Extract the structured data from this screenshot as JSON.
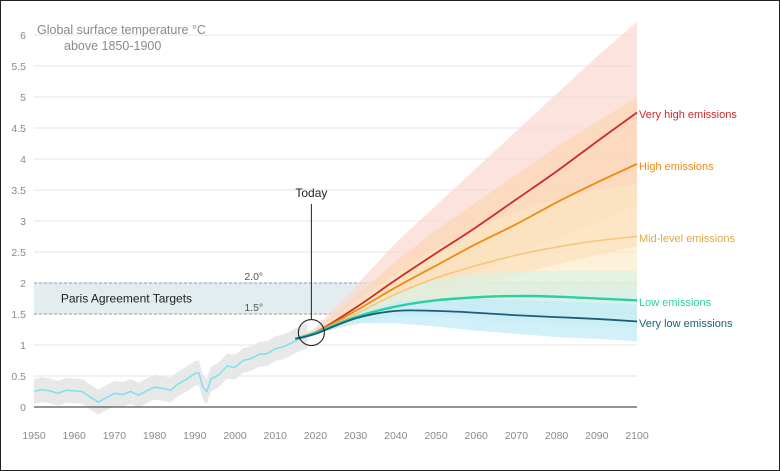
{
  "chart_data": {
    "type": "line",
    "title_lines": [
      "Global surface temperature °C",
      "above 1850-1900"
    ],
    "xlabel": "",
    "ylabel": "",
    "xlim": [
      1950,
      2100
    ],
    "ylim": [
      0,
      6
    ],
    "x_ticks": [
      "1950",
      "1960",
      "1970",
      "1980",
      "1990",
      "2000",
      "2010",
      "2020",
      "2030",
      "2040",
      "2050",
      "2060",
      "2070",
      "2080",
      "2090",
      "2100"
    ],
    "y_ticks": [
      "0",
      "0.5",
      "1",
      "1.5",
      "2",
      "2.5",
      "3",
      "3.5",
      "4",
      "4.5",
      "5",
      "5.5",
      "6"
    ],
    "grid": "horizontal",
    "colors": {
      "historical": "#7ee3f0",
      "historical_band": "#e6e6e6",
      "very_high": "#cc2b2b",
      "high": "#ef8a12",
      "mid": "#f5c77a",
      "low": "#2bd0a0",
      "very_low": "#1c5d7a",
      "very_high_band": "#fbd9d2",
      "high_band": "#fbd6b0",
      "mid_band": "#fbe8c2",
      "low_band": "#d7f3e6",
      "very_low_band": "#c6ecf7",
      "paris_band": "#e3ecee"
    },
    "historical": {
      "x": [
        1950,
        1952,
        1954,
        1956,
        1958,
        1960,
        1962,
        1964,
        1966,
        1968,
        1970,
        1972,
        1974,
        1976,
        1978,
        1980,
        1982,
        1984,
        1986,
        1988,
        1990,
        1991,
        1992,
        1993,
        1994,
        1996,
        1998,
        2000,
        2002,
        2004,
        2006,
        2008,
        2010,
        2012,
        2014,
        2016,
        2018
      ],
      "y": [
        0.25,
        0.28,
        0.26,
        0.22,
        0.27,
        0.26,
        0.25,
        0.16,
        0.08,
        0.15,
        0.22,
        0.2,
        0.25,
        0.19,
        0.26,
        0.32,
        0.3,
        0.27,
        0.38,
        0.45,
        0.54,
        0.55,
        0.32,
        0.25,
        0.45,
        0.52,
        0.66,
        0.64,
        0.75,
        0.78,
        0.85,
        0.86,
        0.94,
        0.97,
        1.03,
        1.1,
        1.14
      ],
      "band_pad": 0.2
    },
    "series": [
      {
        "name": "Very high emissions",
        "x": [
          2015,
          2020,
          2030,
          2040,
          2050,
          2060,
          2070,
          2080,
          2090,
          2100
        ],
        "y": [
          1.1,
          1.2,
          1.6,
          2.05,
          2.48,
          2.9,
          3.35,
          3.8,
          4.28,
          4.75
        ],
        "lower": [
          1.1,
          1.2,
          1.38,
          1.62,
          1.88,
          2.18,
          2.45,
          2.7,
          2.98,
          3.25
        ],
        "upper": [
          1.1,
          1.28,
          1.95,
          2.65,
          3.25,
          3.85,
          4.45,
          5.05,
          5.65,
          6.22
        ]
      },
      {
        "name": "High emissions",
        "x": [
          2015,
          2020,
          2030,
          2040,
          2050,
          2060,
          2070,
          2080,
          2090,
          2100
        ],
        "y": [
          1.1,
          1.2,
          1.55,
          1.93,
          2.28,
          2.63,
          2.95,
          3.3,
          3.62,
          3.92
        ],
        "lower": [
          1.1,
          1.2,
          1.35,
          1.55,
          1.75,
          1.95,
          2.12,
          2.3,
          2.45,
          2.6
        ],
        "upper": [
          1.1,
          1.25,
          1.78,
          2.35,
          2.85,
          3.3,
          3.75,
          4.2,
          4.6,
          5.0
        ]
      },
      {
        "name": "Mid-level emissions",
        "x": [
          2015,
          2020,
          2030,
          2040,
          2050,
          2060,
          2070,
          2080,
          2090,
          2100
        ],
        "y": [
          1.1,
          1.2,
          1.5,
          1.82,
          2.08,
          2.28,
          2.45,
          2.58,
          2.68,
          2.75
        ],
        "lower": [
          1.1,
          1.2,
          1.32,
          1.5,
          1.62,
          1.72,
          1.8,
          1.85,
          1.88,
          1.9
        ],
        "upper": [
          1.1,
          1.22,
          1.7,
          2.15,
          2.55,
          2.9,
          3.15,
          3.35,
          3.5,
          3.6
        ]
      },
      {
        "name": "Low emissions",
        "x": [
          2015,
          2020,
          2030,
          2040,
          2050,
          2060,
          2070,
          2080,
          2090,
          2100
        ],
        "y": [
          1.1,
          1.2,
          1.45,
          1.62,
          1.72,
          1.77,
          1.79,
          1.78,
          1.75,
          1.72
        ],
        "lower": [
          1.1,
          1.2,
          1.35,
          1.45,
          1.45,
          1.4,
          1.35,
          1.32,
          1.3,
          1.28
        ],
        "upper": [
          1.1,
          1.22,
          1.55,
          1.85,
          2.05,
          2.15,
          2.18,
          2.2,
          2.2,
          2.2
        ]
      },
      {
        "name": "Very low emissions",
        "x": [
          2015,
          2020,
          2030,
          2040,
          2050,
          2060,
          2070,
          2080,
          2090,
          2100
        ],
        "y": [
          1.1,
          1.18,
          1.43,
          1.55,
          1.55,
          1.52,
          1.48,
          1.45,
          1.42,
          1.38
        ],
        "lower": [
          1.1,
          1.18,
          1.35,
          1.35,
          1.3,
          1.23,
          1.18,
          1.13,
          1.1,
          1.06
        ],
        "upper": [
          1.1,
          1.2,
          1.52,
          1.7,
          1.75,
          1.75,
          1.72,
          1.7,
          1.68,
          1.65
        ]
      }
    ],
    "paris_agreement": {
      "label": "Paris Agreement Targets",
      "lower": 1.5,
      "upper": 2.0,
      "lower_label": "1.5°",
      "upper_label": "2.0°"
    },
    "today": {
      "label": "Today",
      "x": 2019,
      "y": 1.2
    }
  }
}
